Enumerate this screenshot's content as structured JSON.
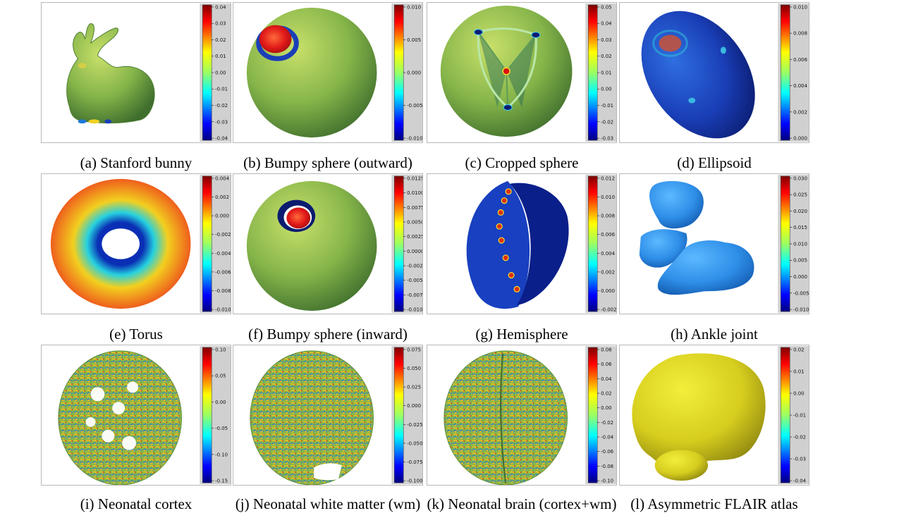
{
  "colors": {
    "panel_border": "#b8b8b8",
    "colorbar_bg": "#d0d0d0",
    "surface_green": "#86b54a"
  },
  "colormap": "jet",
  "panels": [
    {
      "id": "a",
      "caption": "(a) Stanford bunny",
      "shape": "bunny",
      "colorbar_ticks": [
        "0.04",
        "0.03",
        "0.02",
        "0.01",
        "0.00",
        "-0.01",
        "-0.02",
        "-0.03",
        "-0.04"
      ]
    },
    {
      "id": "b",
      "caption": "(b) Bumpy sphere (outward)",
      "shape": "sphere-bump-out",
      "colorbar_ticks": [
        "0.010",
        "0.005",
        "0.000",
        "-0.005",
        "-0.010"
      ]
    },
    {
      "id": "c",
      "caption": "(c) Cropped sphere",
      "shape": "cropped-sphere",
      "colorbar_ticks": [
        "0.05",
        "0.04",
        "0.03",
        "0.02",
        "0.01",
        "0.00",
        "-0.01",
        "-0.02",
        "-0.03"
      ]
    },
    {
      "id": "d",
      "caption": "(d) Ellipsoid",
      "shape": "ellipsoid",
      "colorbar_ticks": [
        "0.010",
        "0.008",
        "0.006",
        "0.004",
        "0.002",
        "0.000"
      ]
    },
    {
      "id": "e",
      "caption": "(e) Torus",
      "shape": "torus",
      "colorbar_ticks": [
        "0.004",
        "0.002",
        "0.000",
        "-0.002",
        "-0.004",
        "-0.006",
        "-0.008",
        "-0.010"
      ]
    },
    {
      "id": "f",
      "caption": "(f) Bumpy sphere (inward)",
      "shape": "sphere-bump-in",
      "colorbar_ticks": [
        "0.0125",
        "0.0100",
        "0.0075",
        "0.0050",
        "0.0025",
        "0.0000",
        "-0.0025",
        "-0.0050",
        "-0.0075",
        "-0.0100"
      ]
    },
    {
      "id": "g",
      "caption": "(g) Hemisphere",
      "shape": "hemisphere",
      "colorbar_ticks": [
        "0.012",
        "0.010",
        "0.008",
        "0.006",
        "0.004",
        "0.002",
        "0.000",
        "-0.002"
      ]
    },
    {
      "id": "h",
      "caption": "(h) Ankle joint",
      "shape": "ankle",
      "colorbar_ticks": [
        "0.030",
        "0.025",
        "0.020",
        "0.015",
        "0.010",
        "0.005",
        "0.000",
        "-0.005",
        "-0.010"
      ]
    },
    {
      "id": "i",
      "caption": "(i) Neonatal cortex",
      "shape": "brain-cortex",
      "colorbar_ticks": [
        "0.10",
        "0.05",
        "0.00",
        "-0.05",
        "-0.10",
        "-0.15"
      ]
    },
    {
      "id": "j",
      "caption": "(j) Neonatal white matter (wm)",
      "shape": "brain-wm",
      "colorbar_ticks": [
        "0.075",
        "0.050",
        "0.025",
        "0.000",
        "-0.025",
        "-0.050",
        "-0.075",
        "-0.100"
      ]
    },
    {
      "id": "k",
      "caption": "(k) Neonatal brain (cortex+wm)",
      "shape": "brain-full",
      "colorbar_ticks": [
        "0.08",
        "0.06",
        "0.04",
        "0.02",
        "0.00",
        "-0.02",
        "-0.04",
        "-0.06",
        "-0.08",
        "-0.10"
      ]
    },
    {
      "id": "l",
      "caption": "(l) Asymmetric FLAIR atlas",
      "shape": "flair-atlas",
      "colorbar_ticks": [
        "0.02",
        "0.01",
        "0.00",
        "-0.01",
        "-0.02",
        "-0.03",
        "-0.04"
      ]
    }
  ]
}
